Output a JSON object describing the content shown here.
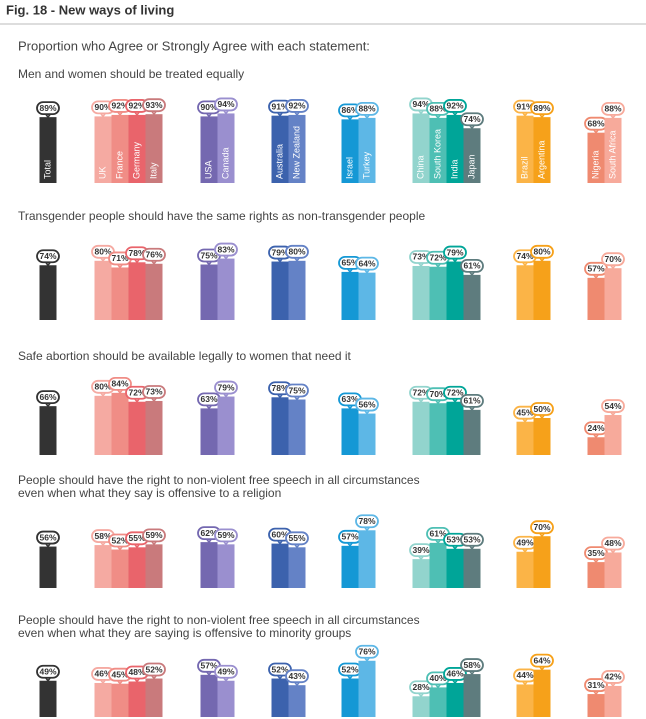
{
  "header": {
    "title": "Fig. 18 - New ways of living",
    "subtitle": "Proportion who Agree or Strongly Agree with each statement:"
  },
  "chart_data": [
    {
      "type": "bar",
      "title": [
        "Men and women should be treated equally"
      ],
      "categories": [
        "Total",
        "UK",
        "France",
        "Germany",
        "Italy",
        "USA",
        "Canada",
        "Australia",
        "New Zealand",
        "Israel",
        "Turkey",
        "China",
        "South Korea",
        "India",
        "Japan",
        "Brazil",
        "Argentina",
        "Nigeria",
        "South Africa"
      ],
      "colors": [
        "#333333",
        "#f5aaa2",
        "#f08d86",
        "#e9646b",
        "#c97a7c",
        "#7468b0",
        "#9a8fcf",
        "#3c62ad",
        "#6482c6",
        "#1598d5",
        "#5db7e6",
        "#92d4cd",
        "#4ebfb4",
        "#00a598",
        "#5e7c7e",
        "#fbb447",
        "#f6a11a",
        "#ef8a70",
        "#f7aa9b"
      ],
      "values": [
        89,
        90,
        92,
        92,
        93,
        90,
        94,
        91,
        92,
        86,
        88,
        94,
        88,
        92,
        74,
        91,
        89,
        68,
        88
      ],
      "value_labels": [
        "89%",
        "90%",
        "92%",
        "92%",
        "93%",
        "90%",
        "94%",
        "91%",
        "92%",
        "86%",
        "88%",
        "94%",
        "88%",
        "92%",
        "74%",
        "91%",
        "89%",
        "68%",
        "88%"
      ],
      "ylim": [
        0,
        100
      ]
    },
    {
      "type": "bar",
      "title": [
        "Transgender people should have the same rights as non-transgender people"
      ],
      "values": [
        74,
        80,
        71,
        78,
        76,
        75,
        83,
        79,
        80,
        65,
        64,
        73,
        72,
        79,
        61,
        74,
        80,
        57,
        70
      ],
      "value_labels": [
        "74%",
        "80%",
        "71%",
        "78%",
        "76%",
        "75%",
        "83%",
        "79%",
        "80%",
        "65%",
        "64%",
        "73%",
        "72%",
        "79%",
        "61%",
        "74%",
        "80%",
        "57%",
        "70%"
      ],
      "ylim": [
        0,
        100
      ]
    },
    {
      "type": "bar",
      "title": [
        "Safe abortion should be available legally to women that need it"
      ],
      "values": [
        66,
        80,
        84,
        72,
        73,
        63,
        79,
        78,
        75,
        63,
        56,
        72,
        70,
        72,
        61,
        45,
        50,
        24,
        54
      ],
      "value_labels": [
        "66%",
        "80%",
        "84%",
        "72%",
        "73%",
        "63%",
        "79%",
        "78%",
        "75%",
        "63%",
        "56%",
        "72%",
        "70%",
        "72%",
        "61%",
        "45%",
        "50%",
        "24%",
        "54%"
      ],
      "ylim": [
        0,
        100
      ]
    },
    {
      "type": "bar",
      "title": [
        "People should have the right to non-violent free speech in all circumstances",
        "even when what they say is offensive to a religion"
      ],
      "values": [
        56,
        58,
        52,
        55,
        59,
        62,
        59,
        60,
        55,
        57,
        78,
        39,
        61,
        53,
        53,
        49,
        70,
        35,
        48
      ],
      "value_labels": [
        "56%",
        "58%",
        "52%",
        "55%",
        "59%",
        "62%",
        "59%",
        "60%",
        "55%",
        "57%",
        "78%",
        "39%",
        "61%",
        "53%",
        "53%",
        "49%",
        "70%",
        "35%",
        "48%"
      ],
      "ylim": [
        0,
        100
      ]
    },
    {
      "type": "bar",
      "title": [
        "People should have the right to non-violent free speech in all circumstances",
        "even when what they are saying is offensive to minority groups"
      ],
      "values": [
        49,
        46,
        45,
        48,
        52,
        57,
        49,
        52,
        43,
        52,
        76,
        28,
        40,
        46,
        58,
        44,
        64,
        31,
        42
      ],
      "value_labels": [
        "49%",
        "46%",
        "45%",
        "48%",
        "52%",
        "57%",
        "49%",
        "52%",
        "43%",
        "52%",
        "76%",
        "28%",
        "40%",
        "46%",
        "58%",
        "44%",
        "64%",
        "31%",
        "42%"
      ],
      "ylim": [
        0,
        100
      ]
    }
  ]
}
